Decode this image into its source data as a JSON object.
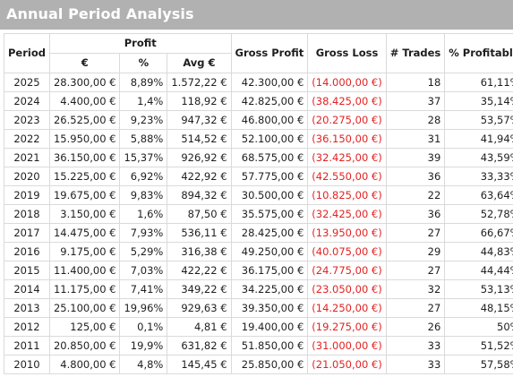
{
  "title": "Annual Period Analysis",
  "colors": {
    "header_bg": "#b1b1b1",
    "negative": "#e32222",
    "grid": "#dadada"
  },
  "headers": {
    "period": "Period",
    "profit": "Profit",
    "profit_eur": "€",
    "profit_pct": "%",
    "profit_avg": "Avg €",
    "gross_profit": "Gross Profit",
    "gross_loss": "Gross Loss",
    "trades": "# Trades",
    "pct_profitable": "% Profitable"
  },
  "rows": [
    {
      "period": "2025",
      "profit": "28.300,00 €",
      "pct": "8,89%",
      "avg": "1.572,22 €",
      "gross_profit": "42.300,00 €",
      "gross_loss": "(14.000,00 €)",
      "trades": "18",
      "pct_profitable": "61,11%"
    },
    {
      "period": "2024",
      "profit": "4.400,00 €",
      "pct": "1,4%",
      "avg": "118,92 €",
      "gross_profit": "42.825,00 €",
      "gross_loss": "(38.425,00 €)",
      "trades": "37",
      "pct_profitable": "35,14%"
    },
    {
      "period": "2023",
      "profit": "26.525,00 €",
      "pct": "9,23%",
      "avg": "947,32 €",
      "gross_profit": "46.800,00 €",
      "gross_loss": "(20.275,00 €)",
      "trades": "28",
      "pct_profitable": "53,57%"
    },
    {
      "period": "2022",
      "profit": "15.950,00 €",
      "pct": "5,88%",
      "avg": "514,52 €",
      "gross_profit": "52.100,00 €",
      "gross_loss": "(36.150,00 €)",
      "trades": "31",
      "pct_profitable": "41,94%"
    },
    {
      "period": "2021",
      "profit": "36.150,00 €",
      "pct": "15,37%",
      "avg": "926,92 €",
      "gross_profit": "68.575,00 €",
      "gross_loss": "(32.425,00 €)",
      "trades": "39",
      "pct_profitable": "43,59%"
    },
    {
      "period": "2020",
      "profit": "15.225,00 €",
      "pct": "6,92%",
      "avg": "422,92 €",
      "gross_profit": "57.775,00 €",
      "gross_loss": "(42.550,00 €)",
      "trades": "36",
      "pct_profitable": "33,33%"
    },
    {
      "period": "2019",
      "profit": "19.675,00 €",
      "pct": "9,83%",
      "avg": "894,32 €",
      "gross_profit": "30.500,00 €",
      "gross_loss": "(10.825,00 €)",
      "trades": "22",
      "pct_profitable": "63,64%"
    },
    {
      "period": "2018",
      "profit": "3.150,00 €",
      "pct": "1,6%",
      "avg": "87,50 €",
      "gross_profit": "35.575,00 €",
      "gross_loss": "(32.425,00 €)",
      "trades": "36",
      "pct_profitable": "52,78%"
    },
    {
      "period": "2017",
      "profit": "14.475,00 €",
      "pct": "7,93%",
      "avg": "536,11 €",
      "gross_profit": "28.425,00 €",
      "gross_loss": "(13.950,00 €)",
      "trades": "27",
      "pct_profitable": "66,67%"
    },
    {
      "period": "2016",
      "profit": "9.175,00 €",
      "pct": "5,29%",
      "avg": "316,38 €",
      "gross_profit": "49.250,00 €",
      "gross_loss": "(40.075,00 €)",
      "trades": "29",
      "pct_profitable": "44,83%"
    },
    {
      "period": "2015",
      "profit": "11.400,00 €",
      "pct": "7,03%",
      "avg": "422,22 €",
      "gross_profit": "36.175,00 €",
      "gross_loss": "(24.775,00 €)",
      "trades": "27",
      "pct_profitable": "44,44%"
    },
    {
      "period": "2014",
      "profit": "11.175,00 €",
      "pct": "7,41%",
      "avg": "349,22 €",
      "gross_profit": "34.225,00 €",
      "gross_loss": "(23.050,00 €)",
      "trades": "32",
      "pct_profitable": "53,13%"
    },
    {
      "period": "2013",
      "profit": "25.100,00 €",
      "pct": "19,96%",
      "avg": "929,63 €",
      "gross_profit": "39.350,00 €",
      "gross_loss": "(14.250,00 €)",
      "trades": "27",
      "pct_profitable": "48,15%"
    },
    {
      "period": "2012",
      "profit": "125,00 €",
      "pct": "0,1%",
      "avg": "4,81 €",
      "gross_profit": "19.400,00 €",
      "gross_loss": "(19.275,00 €)",
      "trades": "26",
      "pct_profitable": "50%"
    },
    {
      "period": "2011",
      "profit": "20.850,00 €",
      "pct": "19,9%",
      "avg": "631,82 €",
      "gross_profit": "51.850,00 €",
      "gross_loss": "(31.000,00 €)",
      "trades": "33",
      "pct_profitable": "51,52%"
    },
    {
      "period": "2010",
      "profit": "4.800,00 €",
      "pct": "4,8%",
      "avg": "145,45 €",
      "gross_profit": "25.850,00 €",
      "gross_loss": "(21.050,00 €)",
      "trades": "33",
      "pct_profitable": "57,58%"
    }
  ]
}
